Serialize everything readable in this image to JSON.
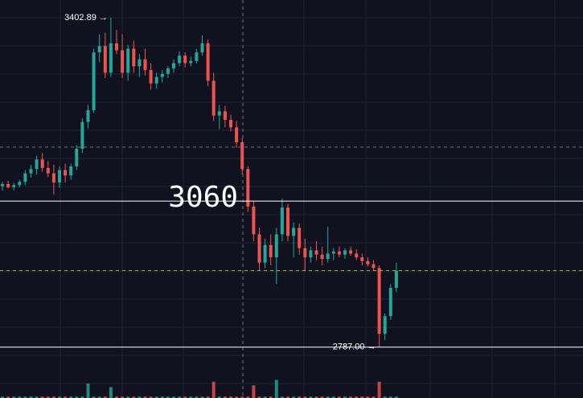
{
  "chart_data": {
    "type": "candlestick",
    "ylim": [
      2692,
      3436
    ],
    "up_color": "#26a69a",
    "down_color": "#ef5350",
    "open": [
      3088,
      3092,
      3086,
      3090,
      3096,
      3112,
      3120,
      3138,
      3122,
      3112,
      3095,
      3118,
      3108,
      3125,
      3158,
      3208,
      3230,
      3338,
      3350,
      3300,
      3355,
      3342,
      3300,
      3345,
      3312,
      3325,
      3305,
      3280,
      3292,
      3298,
      3308,
      3318,
      3332,
      3318,
      3322,
      3338,
      3355,
      3285,
      3220,
      3228,
      3212,
      3198,
      3170,
      3120,
      3050,
      2998,
      2945,
      2978,
      2955,
      2998,
      3048,
      2995,
      3010,
      2972,
      2955,
      2968,
      2960,
      2952,
      2962,
      2966,
      2960,
      2968,
      2962,
      2955,
      2948,
      2942,
      2935,
      2812,
      2845,
      2898
    ],
    "high": [
      3096,
      3098,
      3094,
      3100,
      3118,
      3128,
      3145,
      3150,
      3135,
      3128,
      3125,
      3130,
      3130,
      3165,
      3215,
      3240,
      3345,
      3372,
      3375,
      3402.89,
      3380,
      3372,
      3352,
      3360,
      3335,
      3345,
      3318,
      3300,
      3305,
      3312,
      3325,
      3340,
      3338,
      3330,
      3345,
      3370,
      3362,
      3300,
      3240,
      3238,
      3222,
      3210,
      3178,
      3125,
      3060,
      3010,
      2990,
      2998,
      3010,
      3065,
      3055,
      3020,
      3018,
      2990,
      2975,
      2985,
      2975,
      3012,
      2972,
      2975,
      2972,
      2975,
      2970,
      2962,
      2955,
      2950,
      2940,
      2850,
      2905,
      2945
    ],
    "low": [
      3080,
      3084,
      3080,
      3086,
      3090,
      3104,
      3110,
      3115,
      3105,
      3072,
      3085,
      3095,
      3100,
      3118,
      3150,
      3196,
      3225,
      3320,
      3290,
      3292,
      3335,
      3290,
      3285,
      3300,
      3292,
      3295,
      3268,
      3270,
      3282,
      3290,
      3300,
      3312,
      3310,
      3312,
      3318,
      3332,
      3275,
      3210,
      3195,
      3198,
      3190,
      3160,
      3110,
      3040,
      2985,
      2930,
      2935,
      2940,
      2905,
      2985,
      2985,
      2955,
      2960,
      2930,
      2945,
      2950,
      2940,
      2945,
      2950,
      2955,
      2952,
      2958,
      2950,
      2940,
      2938,
      2930,
      2787,
      2800,
      2838,
      2890
    ],
    "close": [
      3092,
      3086,
      3090,
      3096,
      3112,
      3120,
      3138,
      3122,
      3112,
      3095,
      3118,
      3108,
      3125,
      3158,
      3208,
      3230,
      3338,
      3350,
      3300,
      3355,
      3342,
      3300,
      3345,
      3312,
      3325,
      3305,
      3280,
      3292,
      3298,
      3308,
      3318,
      3332,
      3318,
      3322,
      3338,
      3355,
      3285,
      3220,
      3228,
      3212,
      3198,
      3170,
      3120,
      3050,
      2998,
      2945,
      2978,
      2955,
      2998,
      3048,
      2995,
      3010,
      2972,
      2955,
      2968,
      2960,
      2952,
      2962,
      2966,
      2960,
      2968,
      2962,
      2955,
      2948,
      2942,
      2935,
      2812,
      2845,
      2898,
      2930
    ],
    "volume": [
      4,
      4,
      4,
      4,
      4,
      4,
      4,
      4,
      4,
      4,
      4,
      4,
      4,
      4,
      4,
      40,
      4,
      4,
      4,
      30,
      4,
      4,
      4,
      4,
      4,
      4,
      4,
      4,
      4,
      4,
      4,
      4,
      4,
      4,
      4,
      4,
      4,
      45,
      4,
      4,
      4,
      4,
      4,
      4,
      35,
      4,
      4,
      4,
      50,
      4,
      4,
      4,
      4,
      4,
      4,
      4,
      4,
      4,
      4,
      4,
      4,
      4,
      4,
      4,
      4,
      4,
      45,
      4,
      4,
      4
    ],
    "vlim": [
      0,
      100
    ],
    "annotations": [
      {
        "value": 3402.89,
        "label": "3402.89 →",
        "at": "high"
      },
      {
        "value": 2787,
        "label": "2787.00 →",
        "at": "low"
      }
    ],
    "price_lines": [
      {
        "value": 3060,
        "label": "3060",
        "color": "#ffffff",
        "dashed": false
      },
      {
        "value": 2787,
        "color": "#ffffff",
        "dashed": false
      },
      {
        "value": 3161,
        "color": "#6b7280",
        "dashed": true
      },
      {
        "value": 2930,
        "color": "#9acd32",
        "dashed": true
      }
    ]
  }
}
